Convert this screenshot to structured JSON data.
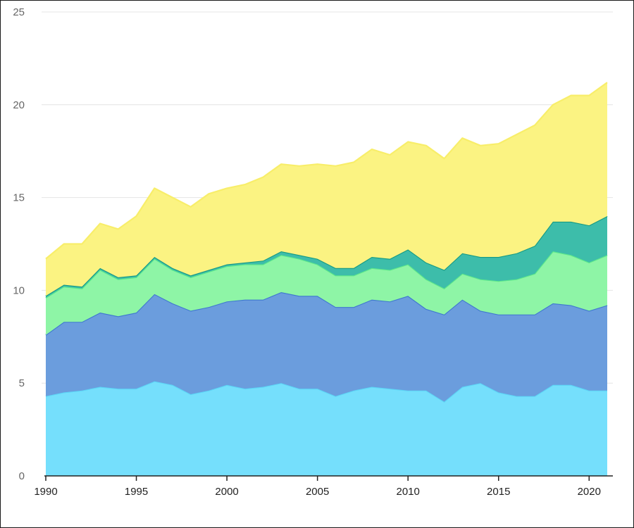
{
  "chart_data": {
    "type": "area",
    "stacked": true,
    "title": "",
    "xlabel": "",
    "ylabel": "",
    "ylim": [
      0,
      25
    ],
    "xlim": [
      1990,
      2021
    ],
    "grid": "horizontal",
    "yticks": [
      0,
      5,
      10,
      15,
      20,
      25
    ],
    "xticks": [
      1990,
      1995,
      2000,
      2005,
      2010,
      2015,
      2020
    ],
    "x": [
      1990,
      1991,
      1992,
      1993,
      1994,
      1995,
      1996,
      1997,
      1998,
      1999,
      2000,
      2001,
      2002,
      2003,
      2004,
      2005,
      2006,
      2007,
      2008,
      2009,
      2010,
      2011,
      2012,
      2013,
      2014,
      2015,
      2016,
      2017,
      2018,
      2019,
      2020,
      2021
    ],
    "series": [
      {
        "fill": "#75dffc",
        "line": "#5cd6f7",
        "values": [
          4.3,
          4.5,
          4.6,
          4.8,
          4.7,
          4.7,
          5.1,
          4.9,
          4.4,
          4.6,
          4.9,
          4.7,
          4.8,
          5.0,
          4.7,
          4.7,
          4.3,
          4.6,
          4.8,
          4.7,
          4.6,
          4.6,
          4.0,
          4.8,
          5.0,
          4.5,
          4.3,
          4.3,
          4.9,
          4.9,
          4.6,
          4.6
        ]
      },
      {
        "fill": "#6b9ddd",
        "line": "#3f78cf",
        "values": [
          3.3,
          3.8,
          3.7,
          4.0,
          3.9,
          4.1,
          4.7,
          4.4,
          4.5,
          4.5,
          4.5,
          4.8,
          4.7,
          4.9,
          5.0,
          5.0,
          4.8,
          4.5,
          4.7,
          4.7,
          5.1,
          4.4,
          4.7,
          4.7,
          3.9,
          4.2,
          4.4,
          4.4,
          4.4,
          4.3,
          4.3,
          4.6
        ]
      },
      {
        "fill": "#8ef5a6",
        "line": "#5de88a",
        "values": [
          2.0,
          1.9,
          1.8,
          2.3,
          2.0,
          1.9,
          1.9,
          1.8,
          1.8,
          1.9,
          1.9,
          1.9,
          1.9,
          2.0,
          2.0,
          1.7,
          1.7,
          1.7,
          1.7,
          1.7,
          1.7,
          1.6,
          1.4,
          1.4,
          1.7,
          1.8,
          1.9,
          2.2,
          2.8,
          2.7,
          2.6,
          2.7
        ]
      },
      {
        "fill": "#3dbdaa",
        "line": "#159a84",
        "values": [
          0.1,
          0.1,
          0.1,
          0.1,
          0.1,
          0.1,
          0.1,
          0.1,
          0.1,
          0.1,
          0.1,
          0.1,
          0.2,
          0.2,
          0.2,
          0.3,
          0.4,
          0.4,
          0.6,
          0.6,
          0.8,
          0.9,
          1.0,
          1.1,
          1.2,
          1.3,
          1.4,
          1.5,
          1.6,
          1.8,
          2.0,
          2.1
        ]
      },
      {
        "fill": "#fbf382",
        "line": "#f8ee6a",
        "values": [
          2.0,
          2.2,
          2.3,
          2.4,
          2.6,
          3.2,
          3.7,
          3.8,
          3.7,
          4.1,
          4.1,
          4.2,
          4.5,
          4.7,
          4.8,
          5.1,
          5.5,
          5.7,
          5.8,
          5.6,
          5.8,
          6.3,
          6.0,
          6.2,
          6.0,
          6.1,
          6.4,
          6.5,
          6.3,
          6.8,
          7.0,
          7.2
        ]
      }
    ]
  }
}
